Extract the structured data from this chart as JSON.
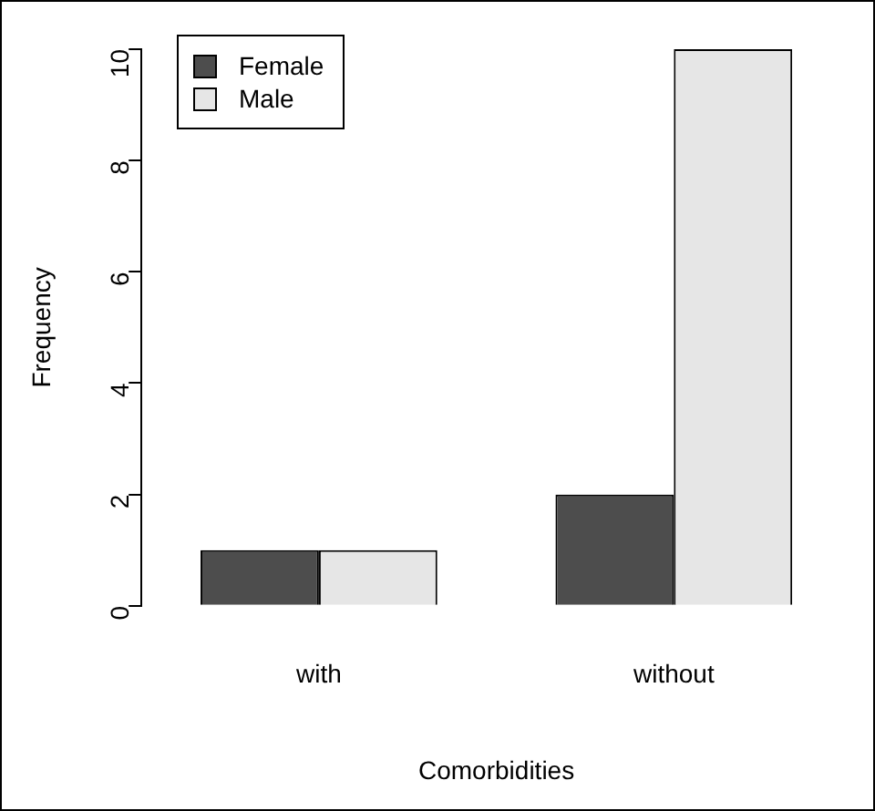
{
  "chart_data": {
    "type": "bar",
    "xlabel": "Comorbidities",
    "ylabel": "Frequency",
    "categories": [
      "with",
      "without"
    ],
    "series": [
      {
        "name": "Female",
        "color": "#4d4d4d",
        "values": [
          1,
          2
        ]
      },
      {
        "name": "Male",
        "color": "#e6e6e6",
        "values": [
          1,
          10
        ]
      }
    ],
    "ylim": [
      0,
      10
    ],
    "yticks": [
      0,
      2,
      4,
      6,
      8,
      10
    ],
    "grid": false,
    "legend": "top left"
  }
}
